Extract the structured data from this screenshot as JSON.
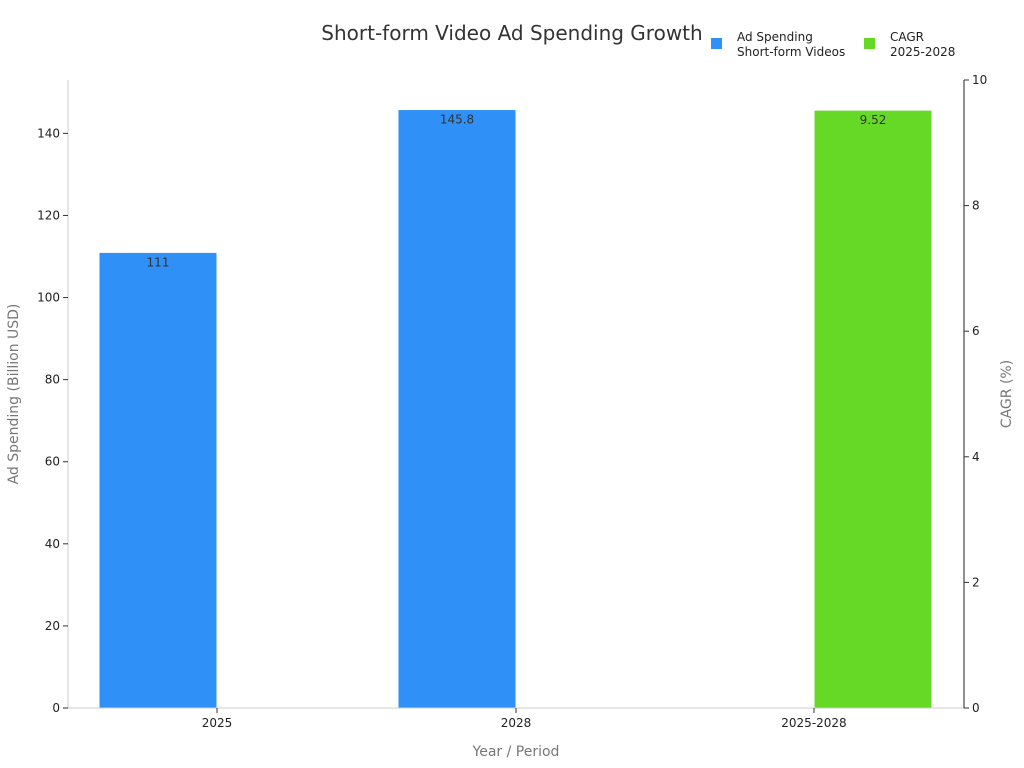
{
  "chart_data": {
    "type": "bar",
    "title": "Short-form Video Ad Spending Growth",
    "xlabel": "Year / Period",
    "ylabel": "Ad Spending (Billion USD)",
    "y2label": "CAGR (%)",
    "categories": [
      "2025",
      "2028",
      "2025-2028"
    ],
    "ylim": [
      0,
      153
    ],
    "y2lim": [
      0,
      10
    ],
    "yticks": [
      0,
      20,
      40,
      60,
      80,
      100,
      120,
      140
    ],
    "y2ticks": [
      0,
      2,
      4,
      6,
      8,
      10
    ],
    "legend_position": "top-right",
    "series": [
      {
        "name": "Ad Spending Short-form Videos",
        "legend_lines": [
          "Ad Spending",
          "Short-form Videos"
        ],
        "axis": "left",
        "color": "#2f91f7",
        "values": [
          111,
          145.8,
          null
        ],
        "labels": [
          "111",
          "145.8",
          ""
        ]
      },
      {
        "name": "CAGR 2025-2028",
        "legend_lines": [
          "CAGR",
          "2025-2028"
        ],
        "axis": "right",
        "color": "#66d926",
        "values": [
          null,
          null,
          9.52
        ],
        "labels": [
          "",
          "",
          "9.52"
        ]
      }
    ]
  }
}
